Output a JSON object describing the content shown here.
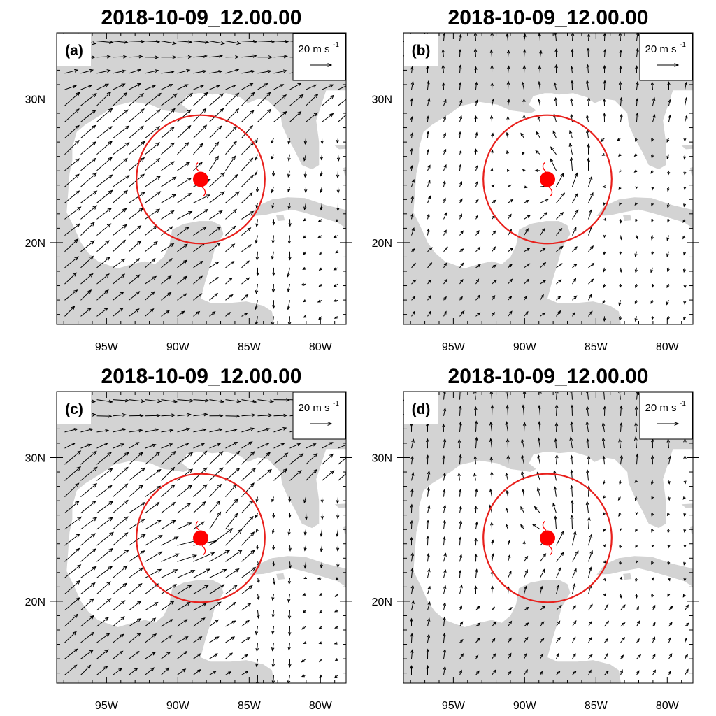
{
  "figure": {
    "panels": [
      {
        "id": "a",
        "title": "2018-10-09_12.00.00",
        "label": "(a)",
        "pattern": "a"
      },
      {
        "id": "b",
        "title": "2018-10-09_12.00.00",
        "label": "(b)",
        "pattern": "b"
      },
      {
        "id": "c",
        "title": "2018-10-09_12.00.00",
        "label": "(c)",
        "pattern": "c"
      },
      {
        "id": "d",
        "title": "2018-10-09_12.00.00",
        "label": "(d)",
        "pattern": "d"
      }
    ],
    "reference_vector": {
      "text": "20 m s",
      "superscript": "-1",
      "speed": 20
    },
    "axes": {
      "lon_range": [
        -98.5,
        -78.2
      ],
      "lat_range": [
        14.3,
        34.6
      ],
      "lon_ticks": [
        {
          "value": -95,
          "label": "95W"
        },
        {
          "value": -90,
          "label": "90W"
        },
        {
          "value": -85,
          "label": "85W"
        },
        {
          "value": -80,
          "label": "80W"
        }
      ],
      "lat_ticks": [
        {
          "value": 30,
          "label": "30N"
        },
        {
          "value": 20,
          "label": "20N"
        }
      ]
    },
    "storm": {
      "center_lon": -88.4,
      "center_lat": 24.4,
      "symbol": "hurricane-symbol",
      "circle_radius_deg": 4.5,
      "circle_color": "#e8201c",
      "symbol_color": "#ff0000"
    },
    "colors": {
      "land": "#d3d3d3",
      "ocean": "#ffffff",
      "vectors": "#000000"
    }
  }
}
